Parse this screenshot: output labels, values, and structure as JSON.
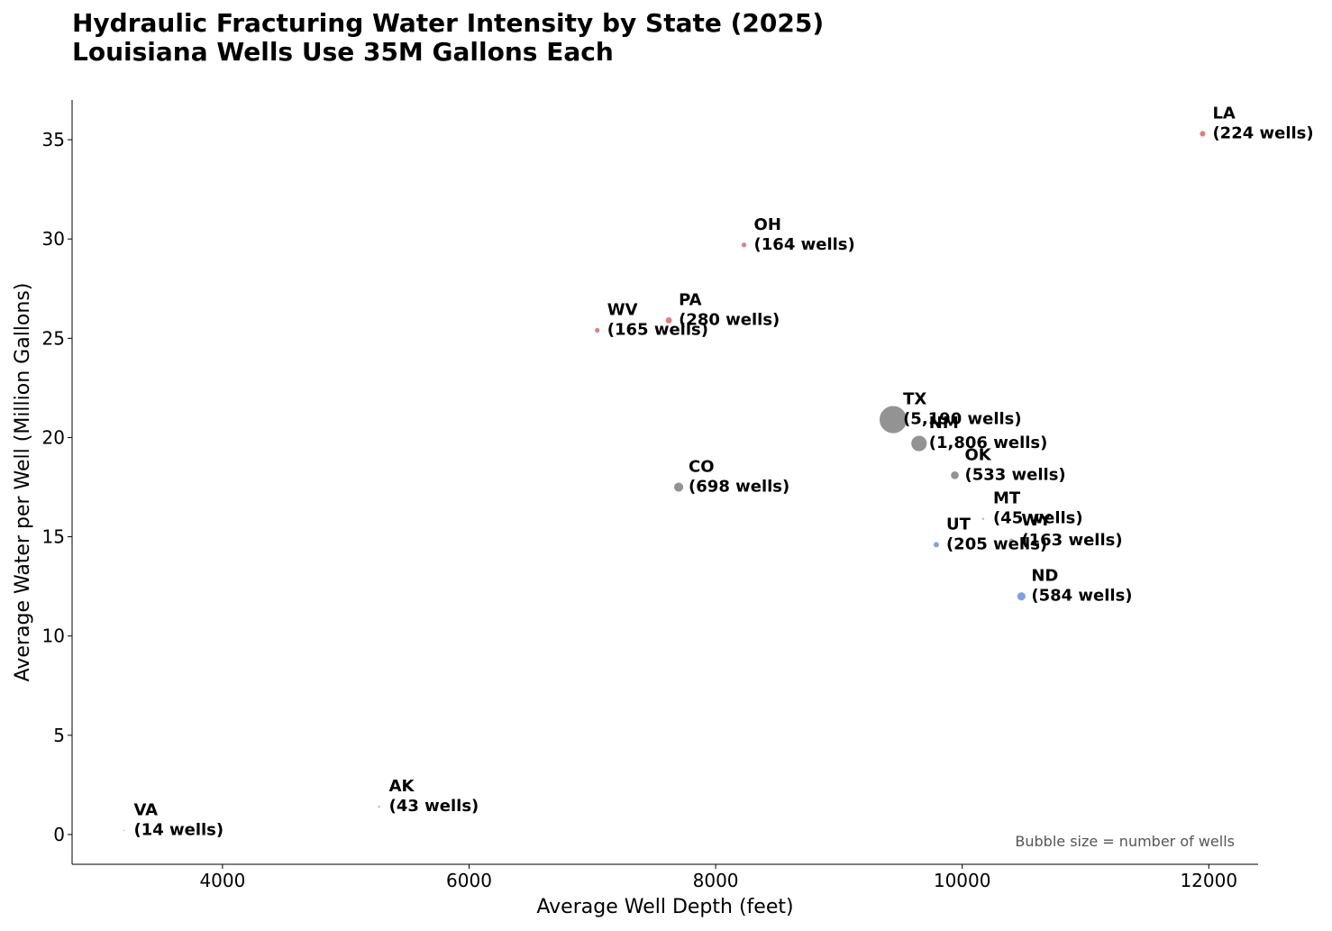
{
  "chart_data": {
    "type": "scatter",
    "title_lines": [
      "Hydraulic Fracturing Water Intensity by State (2025)",
      "Louisiana Wells Use 35M Gallons Each"
    ],
    "xlabel": "Average Well Depth (feet)",
    "ylabel": "Average Water per Well (Million Gallons)",
    "xlim": [
      2780,
      12400
    ],
    "ylim": [
      -1.5,
      37
    ],
    "xticks": [
      4000,
      6000,
      8000,
      10000,
      12000
    ],
    "yticks": [
      0,
      5,
      10,
      15,
      20,
      25,
      30,
      35
    ],
    "grid": false,
    "annotation": "Bubble size = number of wells",
    "points": [
      {
        "state": "LA",
        "wells_label": "(224 wells)",
        "wells": 224,
        "x": 11950,
        "y": 35.3,
        "color": "#e06666"
      },
      {
        "state": "OH",
        "wells_label": "(164 wells)",
        "wells": 164,
        "x": 8230,
        "y": 29.7,
        "color": "#e06666"
      },
      {
        "state": "WV",
        "wells_label": "(165 wells)",
        "wells": 165,
        "x": 7040,
        "y": 25.4,
        "color": "#e06666"
      },
      {
        "state": "PA",
        "wells_label": "(280 wells)",
        "wells": 280,
        "x": 7620,
        "y": 25.9,
        "color": "#e06666"
      },
      {
        "state": "TX",
        "wells_label": "(5,190 wells)",
        "wells": 5190,
        "x": 9440,
        "y": 20.9,
        "color": "#808080"
      },
      {
        "state": "NM",
        "wells_label": "(1,806 wells)",
        "wells": 1806,
        "x": 9650,
        "y": 19.7,
        "color": "#808080"
      },
      {
        "state": "OK",
        "wells_label": "(533 wells)",
        "wells": 533,
        "x": 9940,
        "y": 18.1,
        "color": "#808080"
      },
      {
        "state": "CO",
        "wells_label": "(698 wells)",
        "wells": 698,
        "x": 7700,
        "y": 17.5,
        "color": "#808080"
      },
      {
        "state": "MT",
        "wells_label": "(45 wells)",
        "wells": 45,
        "x": 10170,
        "y": 15.9,
        "color": "#aaaaaa"
      },
      {
        "state": "WY",
        "wells_label": "(163 wells)",
        "wells": 163,
        "x": 10400,
        "y": 14.8,
        "color": "#aaaaaa"
      },
      {
        "state": "UT",
        "wells_label": "(205 wells)",
        "wells": 205,
        "x": 9790,
        "y": 14.6,
        "color": "#6a8fd8"
      },
      {
        "state": "ND",
        "wells_label": "(584 wells)",
        "wells": 584,
        "x": 10480,
        "y": 12.0,
        "color": "#6a8fd8"
      },
      {
        "state": "AK",
        "wells_label": "(43 wells)",
        "wells": 43,
        "x": 5270,
        "y": 1.4,
        "color": "#aaaaaa"
      },
      {
        "state": "VA",
        "wells_label": "(14 wells)",
        "wells": 14,
        "x": 3200,
        "y": 0.2,
        "color": "#aaaaaa"
      }
    ]
  }
}
